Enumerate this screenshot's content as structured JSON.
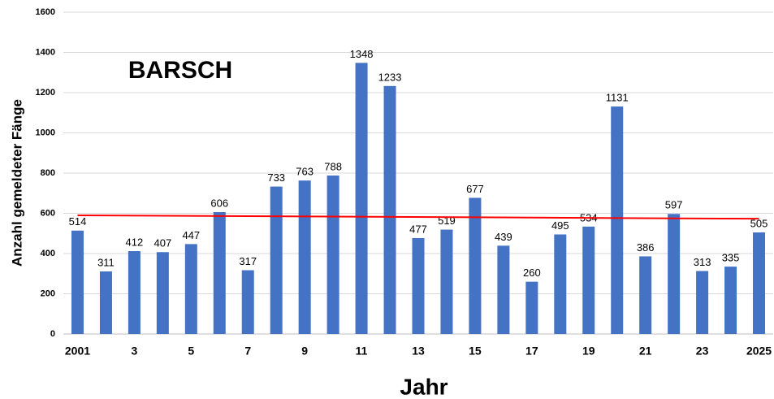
{
  "chart_data": {
    "type": "bar",
    "title": "BARSCH",
    "x_label": "Jahr",
    "y_label": "Anzahl gemeldeter Fänge",
    "categories": [
      "2001",
      null,
      "3",
      null,
      "5",
      null,
      "7",
      null,
      "9",
      null,
      "11",
      null,
      "13",
      null,
      "15",
      null,
      "17",
      null,
      "19",
      null,
      "21",
      null,
      "23",
      null,
      "2025"
    ],
    "values": [
      514,
      311,
      412,
      407,
      447,
      606,
      317,
      733,
      763,
      788,
      1348,
      1233,
      477,
      519,
      677,
      439,
      260,
      495,
      534,
      1131,
      386,
      597,
      313,
      335,
      505
    ],
    "color": "#4472c4",
    "ylim": [
      0,
      1600
    ],
    "yticks": [
      0,
      200,
      400,
      600,
      800,
      1000,
      1200,
      1400,
      1600
    ],
    "grid": true,
    "trendline": {
      "start": 590,
      "end": 573,
      "color": "#ff0000"
    }
  }
}
